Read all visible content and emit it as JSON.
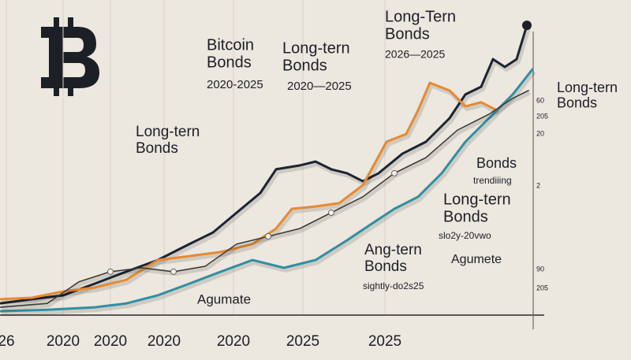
{
  "chart_data": {
    "type": "line",
    "xlim": [
      0,
      100
    ],
    "ylim": [
      0,
      100
    ],
    "grid": true,
    "xticks": [
      {
        "value": 1,
        "label": "26"
      },
      {
        "value": 10,
        "label": "2020"
      },
      {
        "value": 17.5,
        "label": "2020"
      },
      {
        "value": 26,
        "label": "2020"
      },
      {
        "value": 37,
        "label": "2020"
      },
      {
        "value": 48,
        "label": "2025"
      },
      {
        "value": 61,
        "label": "2025"
      }
    ],
    "right_labels": [
      "60",
      "205",
      "20",
      "2",
      "90",
      "205"
    ],
    "annotations": [
      {
        "lines": [
          "Bitcoin",
          "Bonds"
        ],
        "sub": "2020-2025"
      },
      {
        "lines": [
          "Long-tern",
          "Bonds"
        ],
        "sub": "2020—2025"
      },
      {
        "lines": [
          "Long-Tern",
          "Bonds"
        ],
        "sub": "2026—2025"
      },
      {
        "lines": [
          "Long-tern",
          "Bonds"
        ]
      },
      {
        "lines": [
          "Long-tern",
          "Bonds"
        ]
      },
      {
        "lines": [
          "Bonds"
        ],
        "sub": "trendiiing"
      },
      {
        "lines": [
          "Long-tern",
          "Bonds"
        ],
        "sub": "slo2y-20vwo"
      },
      {
        "lines": [
          "Ang-tern",
          "Bonds"
        ],
        "sub": "sightly-do2s25"
      },
      {
        "lines": [
          "Agumate"
        ]
      },
      {
        "lines": [
          "Agumete"
        ]
      }
    ],
    "series": [
      {
        "color": "#1c2334",
        "x": [
          0,
          5,
          10,
          15,
          20,
          25,
          30,
          33.75,
          37.5,
          41.25,
          43.75,
          47.5,
          50,
          52.5,
          55,
          57.5,
          60,
          63.75,
          67.5,
          71.25,
          73.75,
          76.25,
          78.125,
          80,
          81.875,
          83.5
        ],
        "values": [
          3.9,
          5.3,
          6.6,
          10.5,
          14.5,
          18.4,
          23.7,
          27.6,
          34.2,
          40.8,
          48.7,
          50,
          51.3,
          48.7,
          47.4,
          44.7,
          47.4,
          53.9,
          57.9,
          65.8,
          73.7,
          76.3,
          85.5,
          82.9,
          85.5,
          96.8
        ]
      },
      {
        "color": "#e8892e",
        "x": [
          0,
          5,
          10,
          15,
          20,
          25,
          30,
          35,
          40,
          43.75,
          46.25,
          50,
          53.75,
          57.5,
          61.25,
          64.375,
          66.25,
          68.125,
          71.25,
          73.75,
          76.25,
          78.75
        ],
        "values": [
          5.3,
          5.8,
          7.9,
          9.2,
          11.8,
          18.4,
          19.7,
          21.1,
          23.7,
          28.9,
          35.5,
          36.3,
          37.4,
          43.4,
          57.9,
          60.5,
          68.4,
          77.6,
          75,
          69.7,
          71.1,
          68.4
        ]
      },
      {
        "color": "#2f8fa3",
        "x": [
          0,
          7.5,
          15,
          20,
          25,
          30,
          35,
          40,
          45,
          50,
          55,
          58.75,
          62.5,
          66.25,
          70,
          73.75,
          77.5,
          81.25,
          84.375
        ],
        "values": [
          1.3,
          1.8,
          2.6,
          3.9,
          6.6,
          10.5,
          14.5,
          18.4,
          15.8,
          18.4,
          25,
          30.3,
          35.5,
          39.5,
          47.4,
          57.9,
          65.8,
          73.7,
          82.1
        ]
      },
      {
        "color": "#3a3a3a",
        "x": [
          0,
          7.5,
          12.5,
          17.5,
          22.5,
          27.5,
          32.5,
          37.5,
          42.5,
          47.5,
          52.5,
          57.5,
          62.5,
          67.5,
          72.5,
          77.5,
          81.25,
          83.75
        ],
        "values": [
          2.6,
          3.9,
          11.1,
          14.5,
          15.8,
          14.5,
          16.3,
          23.7,
          26.3,
          28.9,
          34.2,
          39.5,
          47.4,
          52.6,
          61.8,
          67.1,
          72.4,
          75
        ]
      }
    ]
  }
}
